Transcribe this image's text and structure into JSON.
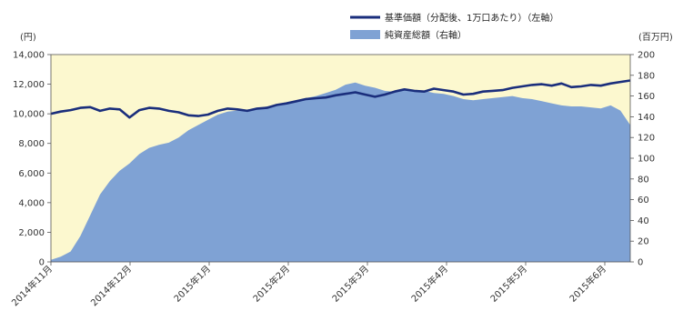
{
  "chart_data": {
    "type": "line",
    "left_unit": "(円)",
    "right_unit": "(百万円)",
    "left_ticks": [
      "0",
      "2,000",
      "4,000",
      "6,000",
      "8,000",
      "10,000",
      "12,000",
      "14,000"
    ],
    "right_ticks": [
      "0",
      "20",
      "40",
      "60",
      "80",
      "100",
      "120",
      "140",
      "160",
      "180",
      "200"
    ],
    "x_ticks": [
      "2014年11月",
      "2014年12月",
      "2015年1月",
      "2015年2月",
      "2015年3月",
      "2015年4月",
      "2015年5月",
      "2015年6月"
    ],
    "ylim_left": [
      0,
      14000
    ],
    "ylim_right": [
      0,
      200
    ],
    "colors": {
      "plot_bg": "#FCF8CF",
      "area": "#7FA2D4",
      "line": "#1A2E7C",
      "axis": "#555555"
    },
    "series": [
      {
        "name": "基準価額（分配後、1万口あたり）（左軸）",
        "axis": "left",
        "style": "line",
        "x": [
          0,
          4,
          8,
          12,
          16,
          20,
          24,
          28,
          32,
          36,
          40,
          44,
          48,
          52,
          56,
          60,
          64,
          68,
          72,
          76,
          80,
          84,
          88,
          92,
          96,
          100,
          104,
          108,
          112,
          116,
          120,
          124,
          128,
          132,
          136,
          140,
          144,
          148,
          152,
          156,
          160,
          164,
          168,
          172,
          176,
          180,
          184,
          188,
          192,
          196,
          200,
          204,
          208,
          212,
          216,
          220,
          224,
          228,
          232,
          236
        ],
        "values": [
          10000,
          10150,
          10250,
          10400,
          10450,
          10200,
          10350,
          10300,
          9750,
          10250,
          10400,
          10350,
          10200,
          10100,
          9900,
          9850,
          9950,
          10200,
          10350,
          10300,
          10200,
          10350,
          10400,
          10600,
          10700,
          10850,
          11000,
          11050,
          11100,
          11250,
          11350,
          11450,
          11300,
          11150,
          11300,
          11500,
          11650,
          11550,
          11500,
          11700,
          11600,
          11500,
          11300,
          11350,
          11500,
          11550,
          11600,
          11750,
          11850,
          11950,
          12000,
          11900,
          12050,
          11800,
          11850,
          11950,
          11900,
          12050,
          12150,
          12250
        ]
      },
      {
        "name": "純資産総額（右軸）",
        "axis": "right",
        "style": "area",
        "x": [
          0,
          4,
          8,
          12,
          16,
          20,
          24,
          28,
          32,
          36,
          40,
          44,
          48,
          52,
          56,
          60,
          64,
          68,
          72,
          76,
          80,
          84,
          88,
          92,
          96,
          100,
          104,
          108,
          112,
          116,
          120,
          124,
          128,
          132,
          136,
          140,
          144,
          148,
          152,
          156,
          160,
          164,
          168,
          172,
          176,
          180,
          184,
          188,
          192,
          196,
          200,
          204,
          208,
          212,
          216,
          220,
          224,
          228,
          232,
          236
        ],
        "values": [
          2,
          5,
          10,
          25,
          45,
          65,
          78,
          88,
          95,
          104,
          110,
          113,
          115,
          120,
          127,
          132,
          137,
          142,
          145,
          146,
          147,
          148,
          150,
          152,
          154,
          156,
          158,
          160,
          163,
          166,
          171,
          173,
          170,
          168,
          165,
          164,
          166,
          165,
          165,
          163,
          162,
          160,
          157,
          156,
          157,
          158,
          159,
          160,
          158,
          157,
          155,
          153,
          151,
          150,
          150,
          149,
          148,
          151,
          146,
          132
        ]
      }
    ]
  }
}
